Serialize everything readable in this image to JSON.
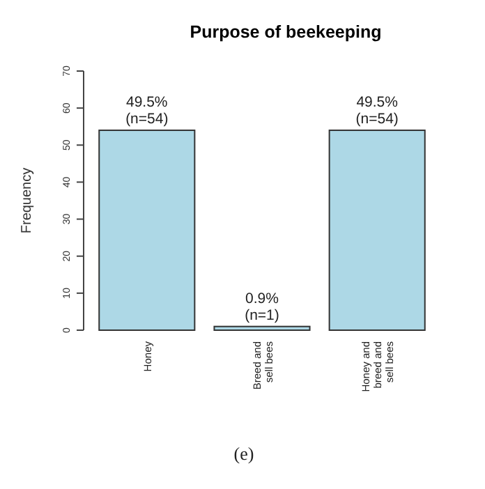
{
  "chart_data": {
    "type": "bar",
    "title": "Purpose of beekeeping",
    "ylabel": "Frequency",
    "categories": [
      "Honey",
      "Breed and\nsell bees",
      "Honey and\nbreed and\nsell bees"
    ],
    "values": [
      54,
      1,
      54
    ],
    "value_labels": [
      "49.5%\n(n=54)",
      "0.9%\n(n=1)",
      "49.5%\n(n=54)"
    ],
    "color": "#add8e6",
    "ylim": [
      0,
      70
    ],
    "yticks": [
      0,
      10,
      20,
      30,
      40,
      50,
      60,
      70
    ],
    "grid": false,
    "annotations": [
      "(e)"
    ]
  }
}
